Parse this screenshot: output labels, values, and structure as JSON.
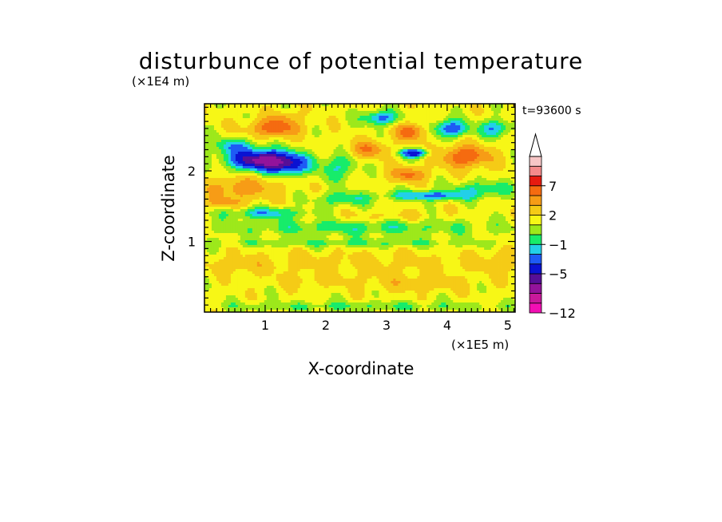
{
  "chart_data": {
    "type": "heatmap",
    "title": "disturbunce of potential temperature",
    "time_label": "t=93600 s",
    "xlabel": "X-coordinate",
    "ylabel": "Z-coordinate",
    "x_unit_label": "(×1E5 m)",
    "y_unit_label": "(×1E4 m)",
    "xlim": [
      0.0,
      5.12
    ],
    "ylim": [
      0.0,
      2.95
    ],
    "x_ticks": [
      1,
      2,
      3,
      4,
      5
    ],
    "x_tick_labels": [
      "1",
      "2",
      "3",
      "4",
      "5"
    ],
    "y_ticks": [
      1,
      2
    ],
    "y_tick_labels": [
      "1",
      "2"
    ],
    "colorbar": {
      "levels": [
        -12,
        -10,
        -8,
        -6.5,
        -5,
        -3.5,
        -2,
        -1,
        0,
        1,
        2,
        3.5,
        5,
        7,
        8.5,
        10
      ],
      "colors": [
        "#f20fb3",
        "#c8199b",
        "#93139b",
        "#560f97",
        "#0a12d2",
        "#1e5bf5",
        "#22d0e8",
        "#17ec6a",
        "#9de81b",
        "#f7f716",
        "#f5cb16",
        "#f79c16",
        "#f56b10",
        "#e61b10",
        "#f48a8a",
        "#f7c6c6"
      ],
      "extend_top": true,
      "tick_values": [
        7,
        2,
        -1,
        -5,
        -12
      ],
      "tick_labels": [
        "7",
        "2",
        "−1",
        "−5",
        "−12"
      ]
    },
    "background_value": 1.5,
    "features": [
      {
        "x": 1.0,
        "z": 2.15,
        "amp": -9.0,
        "sx": 0.55,
        "sz": 0.14
      },
      {
        "x": 0.5,
        "z": 2.35,
        "amp": -3.0,
        "sx": 0.35,
        "sz": 0.12
      },
      {
        "x": 1.4,
        "z": 2.05,
        "amp": -3.5,
        "sx": 0.3,
        "sz": 0.12
      },
      {
        "x": 1.15,
        "z": 2.6,
        "amp": 4.5,
        "sx": 0.4,
        "sz": 0.12
      },
      {
        "x": 1.3,
        "z": 2.75,
        "amp": 2.0,
        "sx": 0.25,
        "sz": 0.1
      },
      {
        "x": 0.6,
        "z": 1.75,
        "amp": 3.0,
        "sx": 0.6,
        "sz": 0.15
      },
      {
        "x": 0.3,
        "z": 1.55,
        "amp": 2.0,
        "sx": 0.35,
        "sz": 0.08
      },
      {
        "x": 1.0,
        "z": 1.4,
        "amp": -3.0,
        "sx": 0.65,
        "sz": 0.08
      },
      {
        "x": 2.7,
        "z": 2.3,
        "amp": 3.5,
        "sx": 0.3,
        "sz": 0.12
      },
      {
        "x": 3.4,
        "z": 2.55,
        "amp": 4.5,
        "sx": 0.25,
        "sz": 0.12
      },
      {
        "x": 3.45,
        "z": 2.25,
        "amp": -6.0,
        "sx": 0.22,
        "sz": 0.06
      },
      {
        "x": 3.35,
        "z": 1.95,
        "amp": 4.0,
        "sx": 0.3,
        "sz": 0.1
      },
      {
        "x": 4.3,
        "z": 2.2,
        "amp": 5.0,
        "sx": 0.4,
        "sz": 0.15
      },
      {
        "x": 4.05,
        "z": 2.6,
        "amp": -4.5,
        "sx": 0.3,
        "sz": 0.12
      },
      {
        "x": 2.9,
        "z": 2.75,
        "amp": -4.0,
        "sx": 0.3,
        "sz": 0.1
      },
      {
        "x": 4.8,
        "z": 2.6,
        "amp": -3.5,
        "sx": 0.25,
        "sz": 0.12
      },
      {
        "x": 3.75,
        "z": 1.65,
        "amp": -4.0,
        "sx": 0.7,
        "sz": 0.07
      },
      {
        "x": 2.3,
        "z": 1.6,
        "amp": -2.5,
        "sx": 0.45,
        "sz": 0.1
      },
      {
        "x": 4.6,
        "z": 1.75,
        "amp": -2.5,
        "sx": 0.5,
        "sz": 0.1
      },
      {
        "x": 2.2,
        "z": 2.05,
        "amp": -2.5,
        "sx": 0.3,
        "sz": 0.18
      },
      {
        "x": 3.0,
        "z": 1.35,
        "amp": 1.0,
        "sx": 0.9,
        "sz": 0.08
      },
      {
        "x": 2.5,
        "z": 1.2,
        "amp": -2.0,
        "sx": 2.4,
        "sz": 0.12
      },
      {
        "x": 2.5,
        "z": 0.98,
        "amp": -1.5,
        "sx": 2.6,
        "sz": 0.06
      },
      {
        "x": 2.5,
        "z": 0.7,
        "amp": 1.0,
        "sx": 2.6,
        "sz": 0.15
      },
      {
        "x": 3.5,
        "z": 0.42,
        "amp": 1.5,
        "sx": 0.8,
        "sz": 0.12
      },
      {
        "x": 1.8,
        "z": 0.45,
        "amp": 1.0,
        "sx": 0.7,
        "sz": 0.1
      },
      {
        "x": 4.9,
        "z": 0.7,
        "amp": 1.5,
        "sx": 0.3,
        "sz": 0.15
      },
      {
        "x": 0.6,
        "z": 0.65,
        "amp": 1.0,
        "sx": 0.4,
        "sz": 0.1
      },
      {
        "x": 2.5,
        "z": 0.08,
        "amp": -1.5,
        "sx": 2.8,
        "sz": 0.07
      }
    ]
  }
}
